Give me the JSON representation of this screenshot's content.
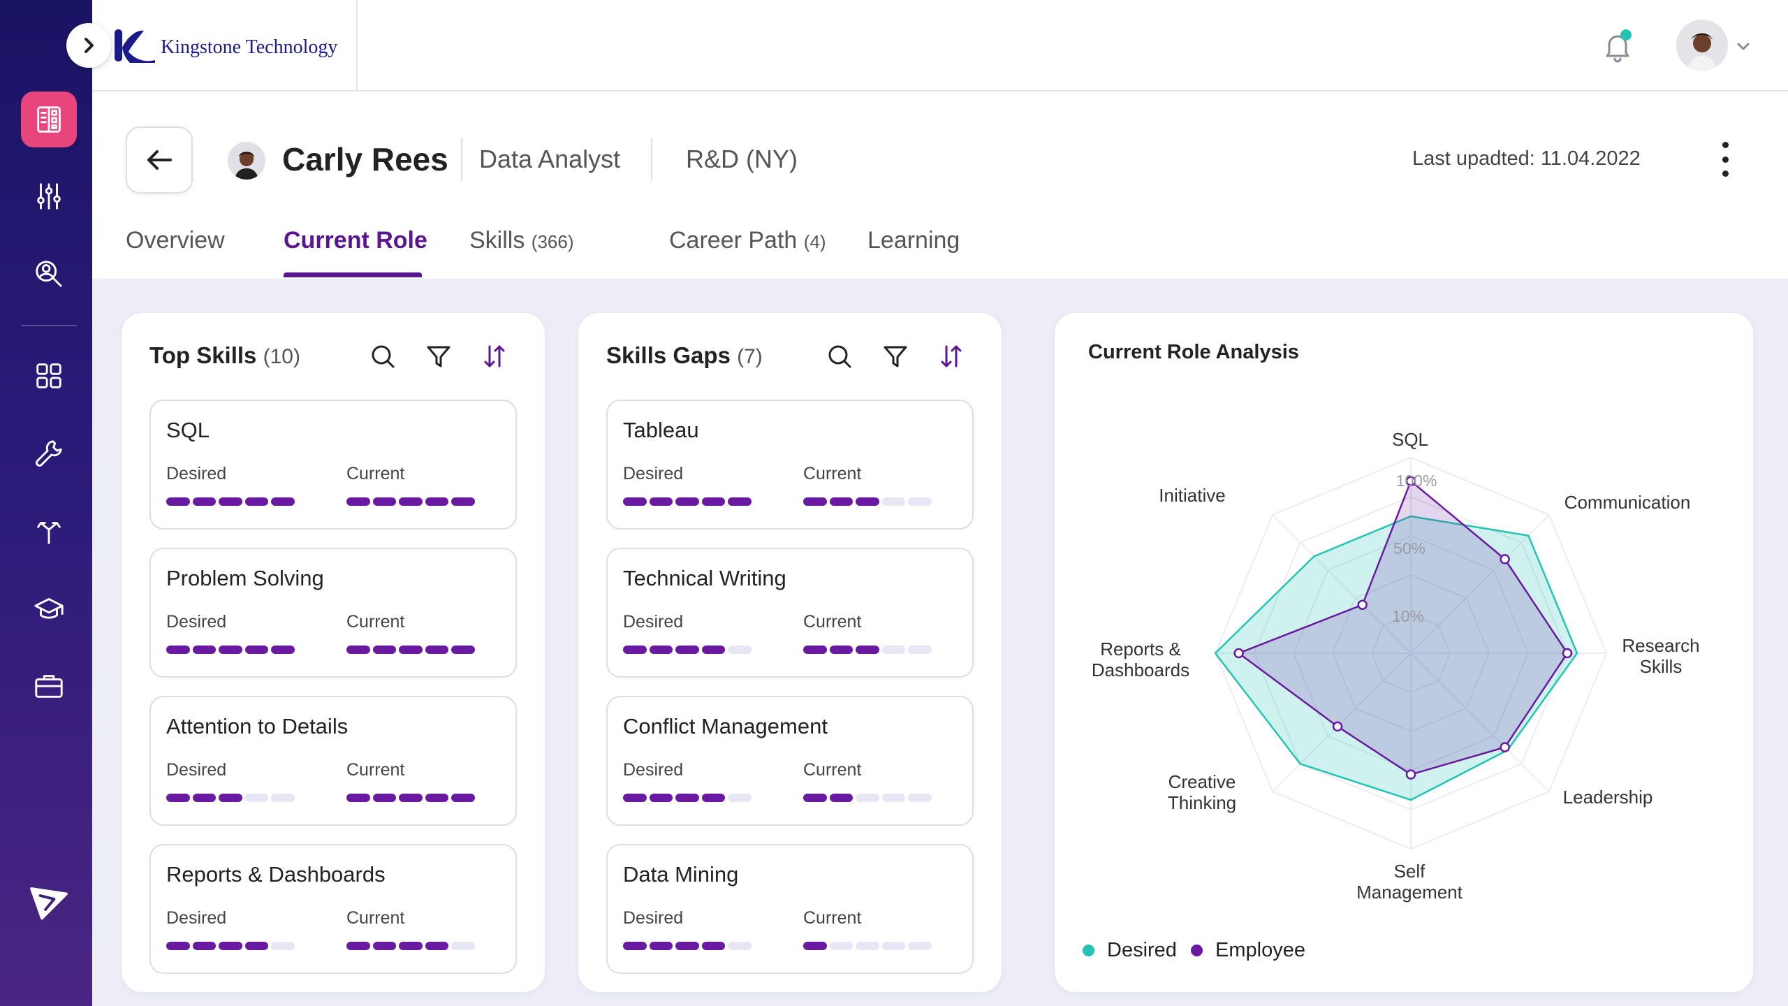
{
  "brand": {
    "name": "Kingstone Technology"
  },
  "sidebar": {
    "items": [
      {
        "icon": "dashboard-icon",
        "active": true
      },
      {
        "icon": "sliders-icon"
      },
      {
        "icon": "person-search-icon"
      },
      {
        "icon": "apps-grid-icon"
      },
      {
        "icon": "wrench-icon"
      },
      {
        "icon": "career-path-icon"
      },
      {
        "icon": "graduation-cap-icon"
      },
      {
        "icon": "briefcase-icon"
      }
    ],
    "bottom_icon": "send-icon"
  },
  "profile": {
    "name": "Carly Rees",
    "role": "Data Analyst",
    "department": "R&D (NY)",
    "last_updated": "Last upadted: 11.04.2022"
  },
  "tabs": [
    {
      "label": "Overview",
      "count": ""
    },
    {
      "label": "Current Role",
      "count": "",
      "active": true
    },
    {
      "label": "Skills",
      "count": "(366)"
    },
    {
      "label": "Career Path",
      "count": "(4)"
    },
    {
      "label": "Learning",
      "count": ""
    }
  ],
  "labels": {
    "desired": "Desired",
    "current": "Current"
  },
  "top_skills": {
    "title": "Top Skills",
    "count": "(10)",
    "items": [
      {
        "name": "SQL",
        "desired": 5,
        "current": 5
      },
      {
        "name": "Problem Solving",
        "desired": 5,
        "current": 5
      },
      {
        "name": "Attention to Details",
        "desired": 3,
        "current": 5
      },
      {
        "name": "Reports & Dashboards",
        "desired": 4,
        "current": 4
      }
    ]
  },
  "skills_gaps": {
    "title": "Skills Gaps",
    "count": "(7)",
    "items": [
      {
        "name": "Tableau",
        "desired": 5,
        "current": 3
      },
      {
        "name": "Technical Writing",
        "desired": 4,
        "current": 3
      },
      {
        "name": "Conflict Management",
        "desired": 4,
        "current": 2
      },
      {
        "name": "Data Mining",
        "desired": 4,
        "current": 1
      }
    ]
  },
  "bar_max": 5,
  "analysis": {
    "title": "Current Role Analysis",
    "ring_labels": [
      "100%",
      "50%",
      "10%"
    ],
    "legend": {
      "desired": "Desired",
      "employee": "Employee"
    },
    "colors": {
      "desired": "#23c4b3",
      "employee": "#6a1aa0"
    }
  },
  "chart_data": {
    "type": "radar",
    "axes": [
      "SQL",
      "Communication",
      "Research Skills",
      "Leadership",
      "Self Management",
      "Creative Thinking",
      "Reports & Dashboards",
      "Initiative"
    ],
    "axis_label_lines": [
      [
        "SQL"
      ],
      [
        "Communication"
      ],
      [
        "Research",
        "Skills"
      ],
      [
        "Leadership"
      ],
      [
        "Self",
        "Management"
      ],
      [
        "Creative",
        "Thinking"
      ],
      [
        "Reports &",
        "Dashboards"
      ],
      [
        "Initiative"
      ]
    ],
    "range": [
      0,
      100
    ],
    "series": [
      {
        "name": "Desired",
        "values": [
          70,
          85,
          85,
          70,
          75,
          80,
          100,
          70
        ]
      },
      {
        "name": "Employee",
        "values": [
          88,
          68,
          80,
          68,
          62,
          53,
          88,
          35
        ]
      }
    ]
  }
}
